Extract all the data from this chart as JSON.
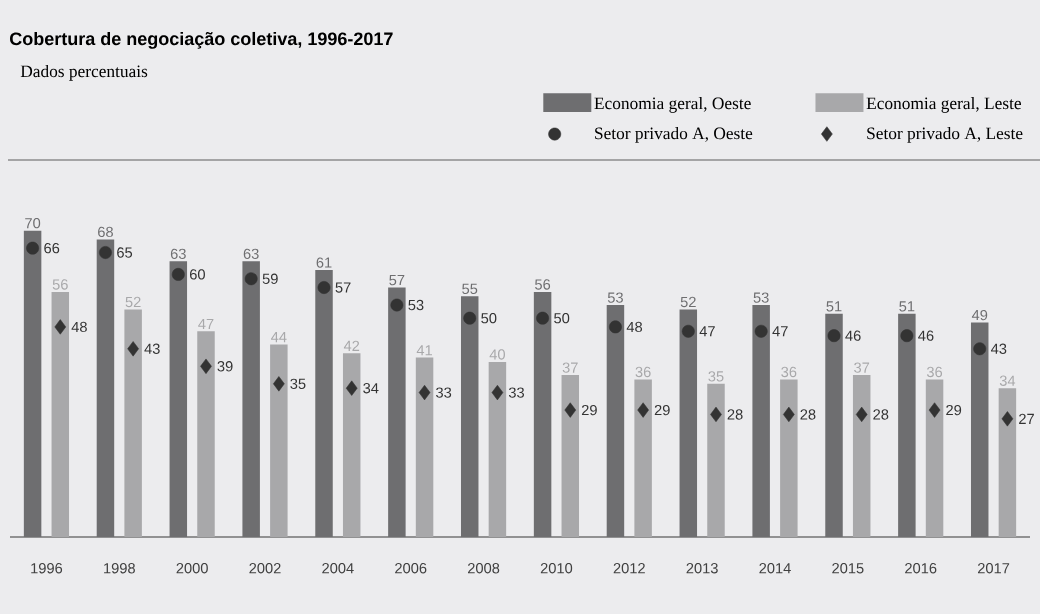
{
  "chart_data": {
    "type": "bar",
    "title": "Cobertura de negociação coletiva, 1996-2017",
    "subtitle": "Dados percentuais",
    "categories": [
      "1996",
      "1998",
      "2000",
      "2002",
      "2004",
      "2006",
      "2008",
      "2010",
      "2012",
      "2013",
      "2014",
      "2015",
      "2016",
      "2017"
    ],
    "series": [
      {
        "name": "Economia geral, Oeste",
        "color": "#6e6e70",
        "values": [
          70,
          68,
          63,
          63,
          61,
          57,
          55,
          56,
          53,
          52,
          53,
          51,
          51,
          49
        ]
      },
      {
        "name": "Economia geral, Leste",
        "color": "#a8a8aa",
        "values": [
          56,
          52,
          47,
          44,
          42,
          41,
          40,
          37,
          36,
          35,
          36,
          37,
          36,
          34
        ]
      },
      {
        "name": "Setor privado A, Oeste",
        "type": "scatter",
        "marker": "circle",
        "color": "#333333",
        "values": [
          66,
          65,
          60,
          59,
          57,
          53,
          50,
          50,
          48,
          47,
          47,
          46,
          46,
          43
        ]
      },
      {
        "name": "Setor privado A, Leste",
        "type": "scatter",
        "marker": "diamond",
        "color": "#333333",
        "values": [
          48,
          43,
          39,
          35,
          34,
          33,
          33,
          29,
          29,
          28,
          28,
          28,
          29,
          27
        ]
      }
    ],
    "data_labels": true,
    "legend": "top right"
  }
}
